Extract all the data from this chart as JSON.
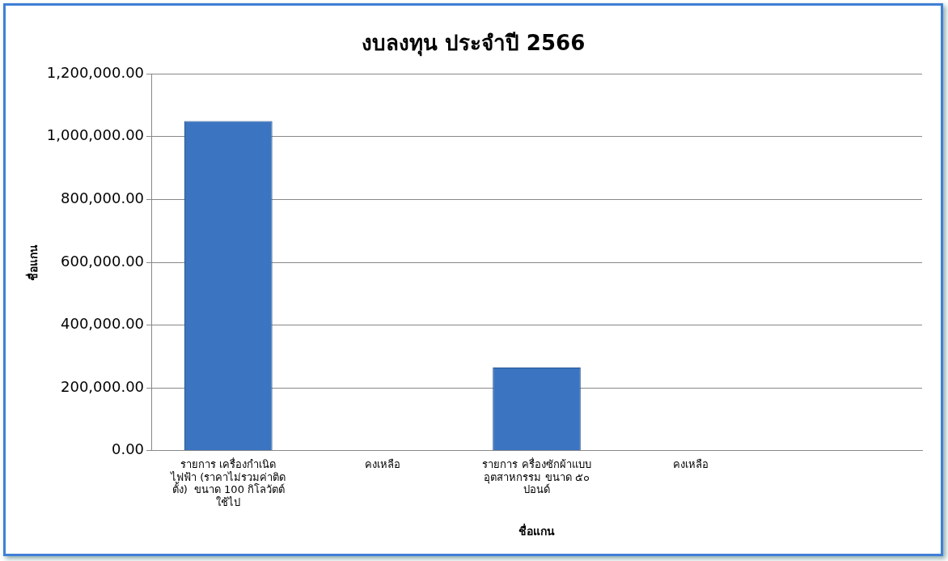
{
  "chart_data": {
    "type": "bar",
    "title": "งบลงทุน ประจำปี 2566",
    "xlabel": "ชื่อแกน",
    "ylabel": "ชื่อแกน",
    "categories": [
      "รายการ เครื่องกำเนิดไฟฟ้า (ราคาไม่รวมค่าติดตั้ง)  ขนาด 100 กิโลวัตต์ ใช้ไป",
      "คงเหลือ",
      "รายการ ครื่องซักผ้าแบบอุตสาหกรรม ขนาด ๕๐ ปอนด์",
      "คงเหลือ",
      null
    ],
    "values": [
      1050000,
      0,
      265000,
      0,
      null
    ],
    "color": "#3b74c0",
    "ylim": [
      0,
      1200000
    ],
    "yticks": [
      {
        "value": 0,
        "label": "0.00"
      },
      {
        "value": 200000,
        "label": "200,000.00"
      },
      {
        "value": 400000,
        "label": "400,000.00"
      },
      {
        "value": 600000,
        "label": "600,000.00"
      },
      {
        "value": 800000,
        "label": "800,000.00"
      },
      {
        "value": 1000000,
        "label": "1,000,000.00"
      },
      {
        "value": 1200000,
        "label": "1,200,000.00"
      }
    ],
    "grid": "y",
    "legend": false
  }
}
